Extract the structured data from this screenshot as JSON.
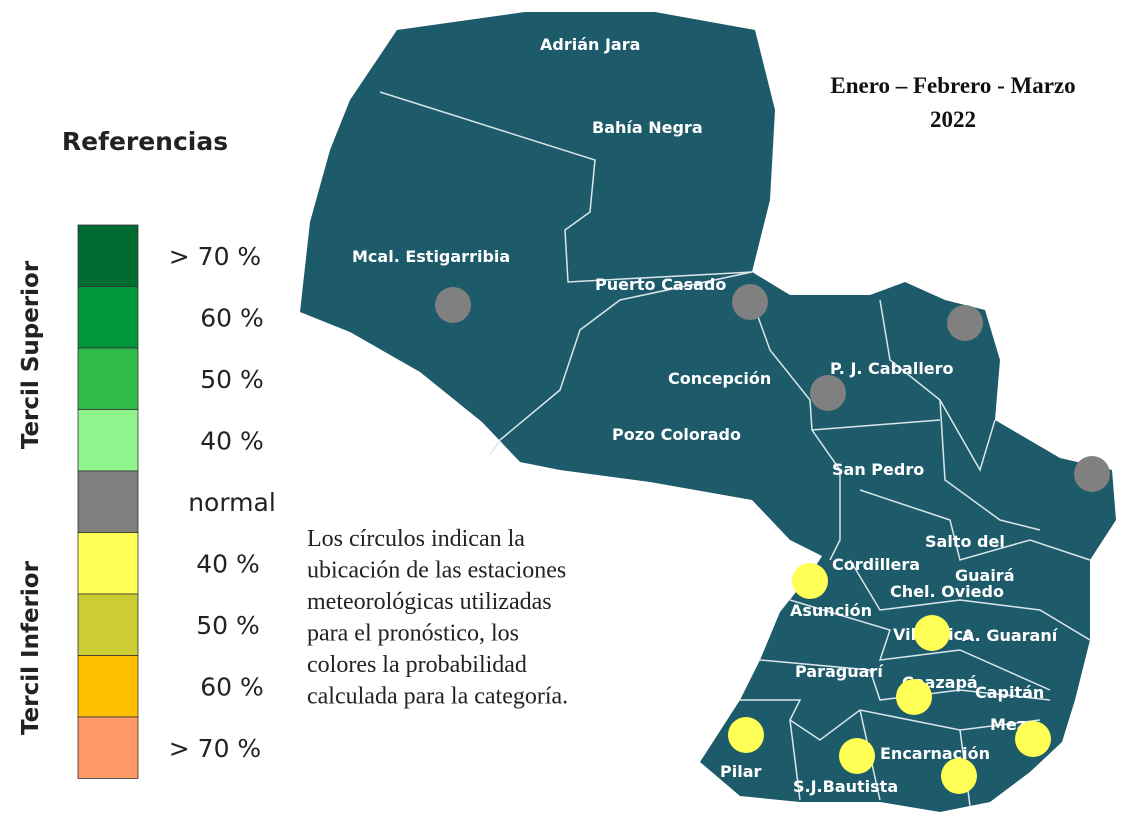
{
  "legend": {
    "title": "Referencias",
    "upper_label": "Tercil Superior",
    "lower_label": "Tercil Inferior",
    "items": [
      {
        "label": "> 70 %",
        "color": "#006b30"
      },
      {
        "label": "60 %",
        "color": "#00973c"
      },
      {
        "label": "50 %",
        "color": "#2fbb4a"
      },
      {
        "label": "40 %",
        "color": "#8ef48c"
      },
      {
        "label": "normal",
        "color": "#808080"
      },
      {
        "label": "40  %",
        "color": "#ffff55"
      },
      {
        "label": "50  %",
        "color": "#cccc33"
      },
      {
        "label": "60 %",
        "color": "#ffc000"
      },
      {
        "label": "> 70 %",
        "color": "#ff9966"
      }
    ]
  },
  "header": {
    "title_line1": "Enero – Febrero - Marzo",
    "title_line2": "2022"
  },
  "note": [
    "Los círculos indican la",
    "ubicación de las estaciones",
    "meteorológicas utilizadas",
    "para el pronóstico, los",
    "colores la probabilidad",
    "calculada para la categoría."
  ],
  "map": {
    "color": "#1e5b6a",
    "regions": [
      "Adrián Jara",
      "Bahía Negra",
      "Mcal. Estigarribia",
      "Puerto Casado",
      "Concepción",
      "P. J. Caballero",
      "Pozo Colorado",
      "San Pedro",
      "Salto del",
      "Guairá",
      "Cordillera",
      "Chel. Oviedo",
      "Asunción",
      "A. Guaraní",
      "Villarrica",
      "Paraguarí",
      "Caazapá",
      "Capitán",
      "Meza",
      "Pilar",
      "Encarnación",
      "S.J.Bautista"
    ],
    "stations": [
      "#808080",
      "#808080",
      "#808080",
      "#808080",
      "#808080",
      "#ffff55",
      "#ffff55",
      "#ffff55",
      "#ffff55",
      "#ffff55",
      "#ffff55",
      "#ffff55"
    ]
  }
}
